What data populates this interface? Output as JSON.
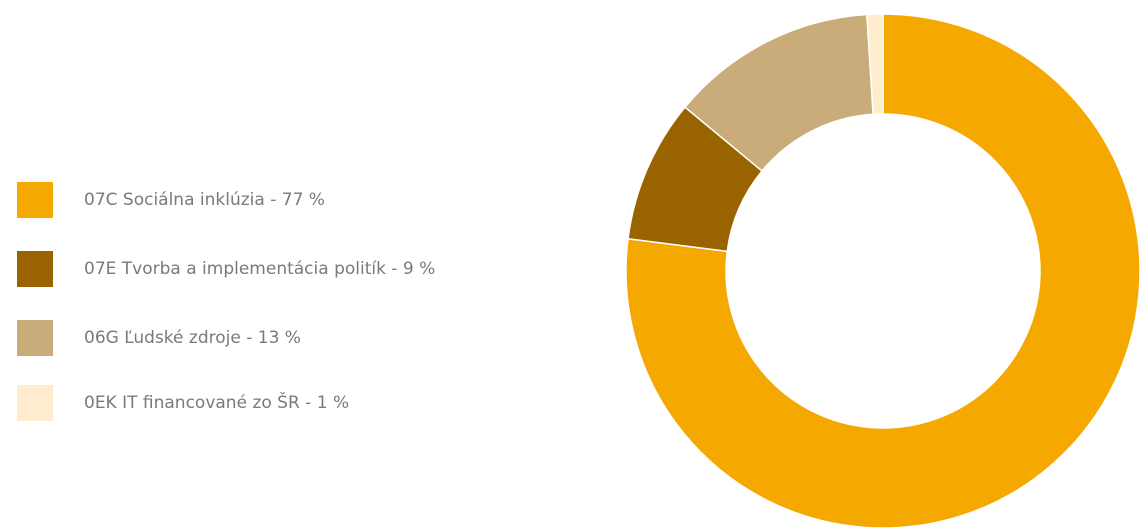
{
  "chart_data": {
    "type": "donut",
    "categories": [
      "07C Sociálna inklúzia - 77 %",
      "07E Tvorba a implementácia politík - 9 %",
      "06G Ľudské zdroje - 13 %",
      "0EK IT financované zo ŠR - 1 %"
    ],
    "values": [
      77,
      9,
      13,
      1
    ],
    "colors": [
      "#f5a800",
      "#996300",
      "#c9ac7a",
      "#feeccd"
    ],
    "legend": "left"
  }
}
